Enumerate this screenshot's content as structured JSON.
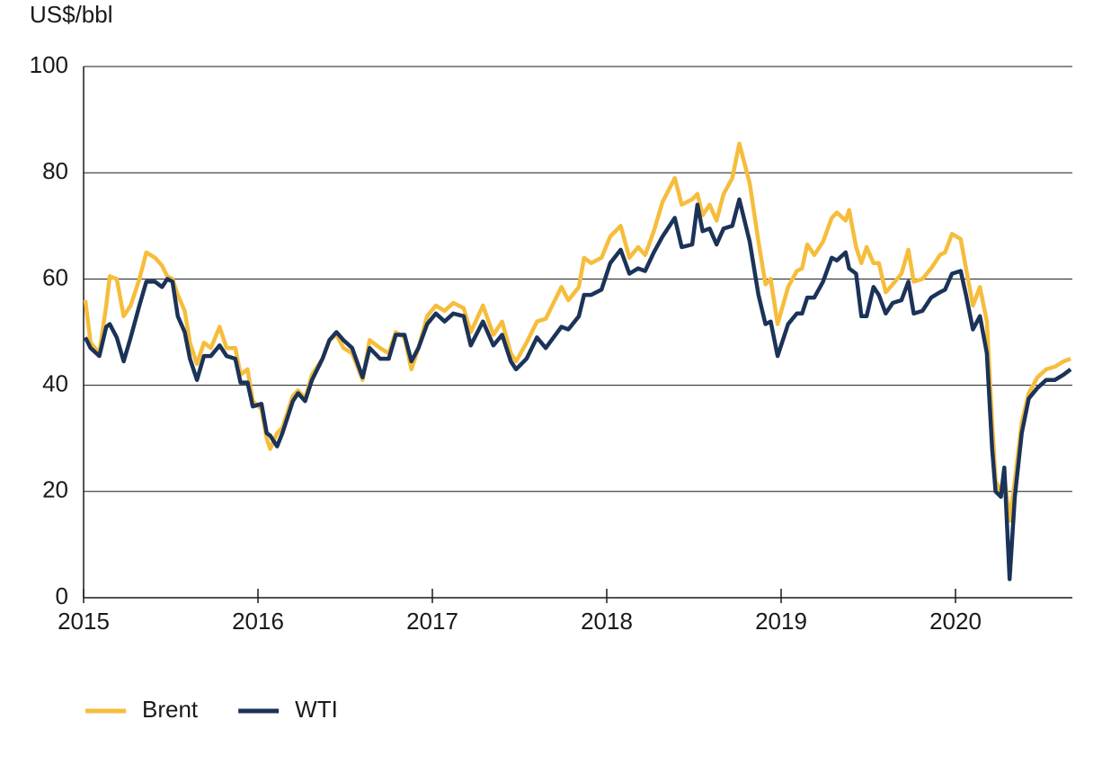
{
  "chart_data": {
    "type": "line",
    "y_label": "US$/bbl",
    "x": [
      2015.01,
      2015.04,
      2015.09,
      2015.13,
      2015.15,
      2015.19,
      2015.23,
      2015.27,
      2015.32,
      2015.36,
      2015.41,
      2015.45,
      2015.48,
      2015.51,
      2015.54,
      2015.58,
      2015.61,
      2015.65,
      2015.69,
      2015.73,
      2015.78,
      2015.82,
      2015.87,
      2015.9,
      2015.94,
      2015.97,
      2016.02,
      2016.05,
      2016.07,
      2016.11,
      2016.14,
      2016.2,
      2016.23,
      2016.27,
      2016.31,
      2016.37,
      2016.41,
      2016.45,
      2016.49,
      2016.54,
      2016.6,
      2016.64,
      2016.7,
      2016.75,
      2016.79,
      2016.84,
      2016.88,
      2016.92,
      2016.97,
      2017.02,
      2017.07,
      2017.12,
      2017.18,
      2017.22,
      2017.29,
      2017.35,
      2017.4,
      2017.45,
      2017.48,
      2017.54,
      2017.6,
      2017.65,
      2017.74,
      2017.78,
      2017.84,
      2017.87,
      2017.91,
      2017.97,
      2018.02,
      2018.08,
      2018.13,
      2018.18,
      2018.22,
      2018.27,
      2018.32,
      2018.39,
      2018.43,
      2018.49,
      2018.52,
      2018.55,
      2018.59,
      2018.63,
      2018.67,
      2018.72,
      2018.76,
      2018.82,
      2018.87,
      2018.91,
      2018.94,
      2018.98,
      2019.04,
      2019.09,
      2019.12,
      2019.15,
      2019.19,
      2019.24,
      2019.29,
      2019.32,
      2019.37,
      2019.39,
      2019.43,
      2019.46,
      2019.49,
      2019.53,
      2019.56,
      2019.6,
      2019.64,
      2019.69,
      2019.73,
      2019.76,
      2019.81,
      2019.86,
      2019.91,
      2019.94,
      2019.98,
      2020.03,
      2020.06,
      2020.1,
      2020.14,
      2020.18,
      2020.21,
      2020.23,
      2020.26,
      2020.28,
      2020.31,
      2020.34,
      2020.38,
      2020.42,
      2020.47,
      2020.52,
      2020.57,
      2020.62,
      2020.66
    ],
    "series": [
      {
        "name": "Brent",
        "color": "#f6bd3c",
        "values": [
          56,
          48,
          46,
          55,
          60.5,
          60,
          53,
          55,
          60,
          65,
          64,
          62.5,
          60.5,
          60,
          57,
          54,
          48,
          44,
          48,
          47,
          51,
          47,
          47,
          42,
          43,
          37,
          35.5,
          30,
          28,
          31,
          32,
          38,
          39,
          37.5,
          42,
          45,
          48.5,
          49.5,
          47,
          46,
          41,
          48.5,
          47,
          46,
          50,
          49,
          43,
          47,
          53,
          55,
          54,
          55.5,
          54.5,
          50,
          55,
          49.5,
          52,
          46,
          44.5,
          48,
          52,
          52.5,
          58.5,
          56,
          58.5,
          64,
          63,
          64,
          68,
          70,
          64,
          66,
          64.5,
          69,
          74.5,
          79,
          74,
          75,
          76,
          72,
          74,
          71,
          76,
          79,
          85.5,
          78,
          67,
          59,
          60,
          51.5,
          58.5,
          61.5,
          62,
          66.5,
          64.5,
          67,
          71.5,
          72.5,
          71,
          73,
          66,
          63,
          66,
          63,
          63,
          57.5,
          59,
          61,
          65.5,
          59.5,
          60,
          62,
          64.5,
          65,
          68.5,
          67.5,
          62,
          55,
          58.5,
          52,
          33,
          22,
          20,
          23,
          14.5,
          22,
          33,
          38.5,
          41.5,
          43,
          43.5,
          44.5,
          45
        ]
      },
      {
        "name": "WTI",
        "color": "#1b3358",
        "values": [
          49,
          47,
          45.5,
          51,
          51.5,
          49,
          44.5,
          49,
          55,
          59.5,
          59.5,
          58.5,
          60,
          59.5,
          53,
          50,
          45,
          41,
          45.5,
          45.5,
          47.5,
          45.5,
          45,
          40.5,
          40.5,
          36,
          36.5,
          31,
          30.5,
          28.5,
          31,
          37,
          38.5,
          37,
          41,
          45,
          48.5,
          50,
          48.5,
          47,
          41.5,
          47,
          45,
          45,
          49.5,
          49.5,
          44.5,
          47,
          51.5,
          53.5,
          52,
          53.5,
          53,
          47.5,
          52,
          47.5,
          49.5,
          44.5,
          43,
          45,
          49,
          47,
          51,
          50.5,
          53,
          57,
          57,
          58,
          63,
          65.5,
          61,
          62,
          61.5,
          65,
          68,
          71.5,
          66,
          66.5,
          74,
          69,
          69.5,
          66.5,
          69.5,
          70,
          75,
          67,
          57,
          51.5,
          52,
          45.5,
          51.5,
          53.5,
          53.5,
          56.5,
          56.5,
          59.5,
          64,
          63.5,
          65,
          62,
          61,
          53,
          53,
          58.5,
          57,
          53.5,
          55.5,
          56,
          59.5,
          53.5,
          54,
          56.5,
          57.5,
          58,
          61,
          61.5,
          57,
          50.5,
          53,
          46,
          28,
          20,
          19,
          24.5,
          3.5,
          19,
          31,
          37.5,
          39.5,
          41,
          41,
          42,
          43
        ]
      }
    ],
    "xlim": [
      2015,
      2020.67
    ],
    "xticks": [
      2015,
      2016,
      2017,
      2018,
      2019,
      2020
    ],
    "ylim": [
      0,
      100
    ],
    "yticks": [
      0,
      20,
      40,
      60,
      80,
      100
    ],
    "grid": true,
    "legend": "bottom"
  }
}
